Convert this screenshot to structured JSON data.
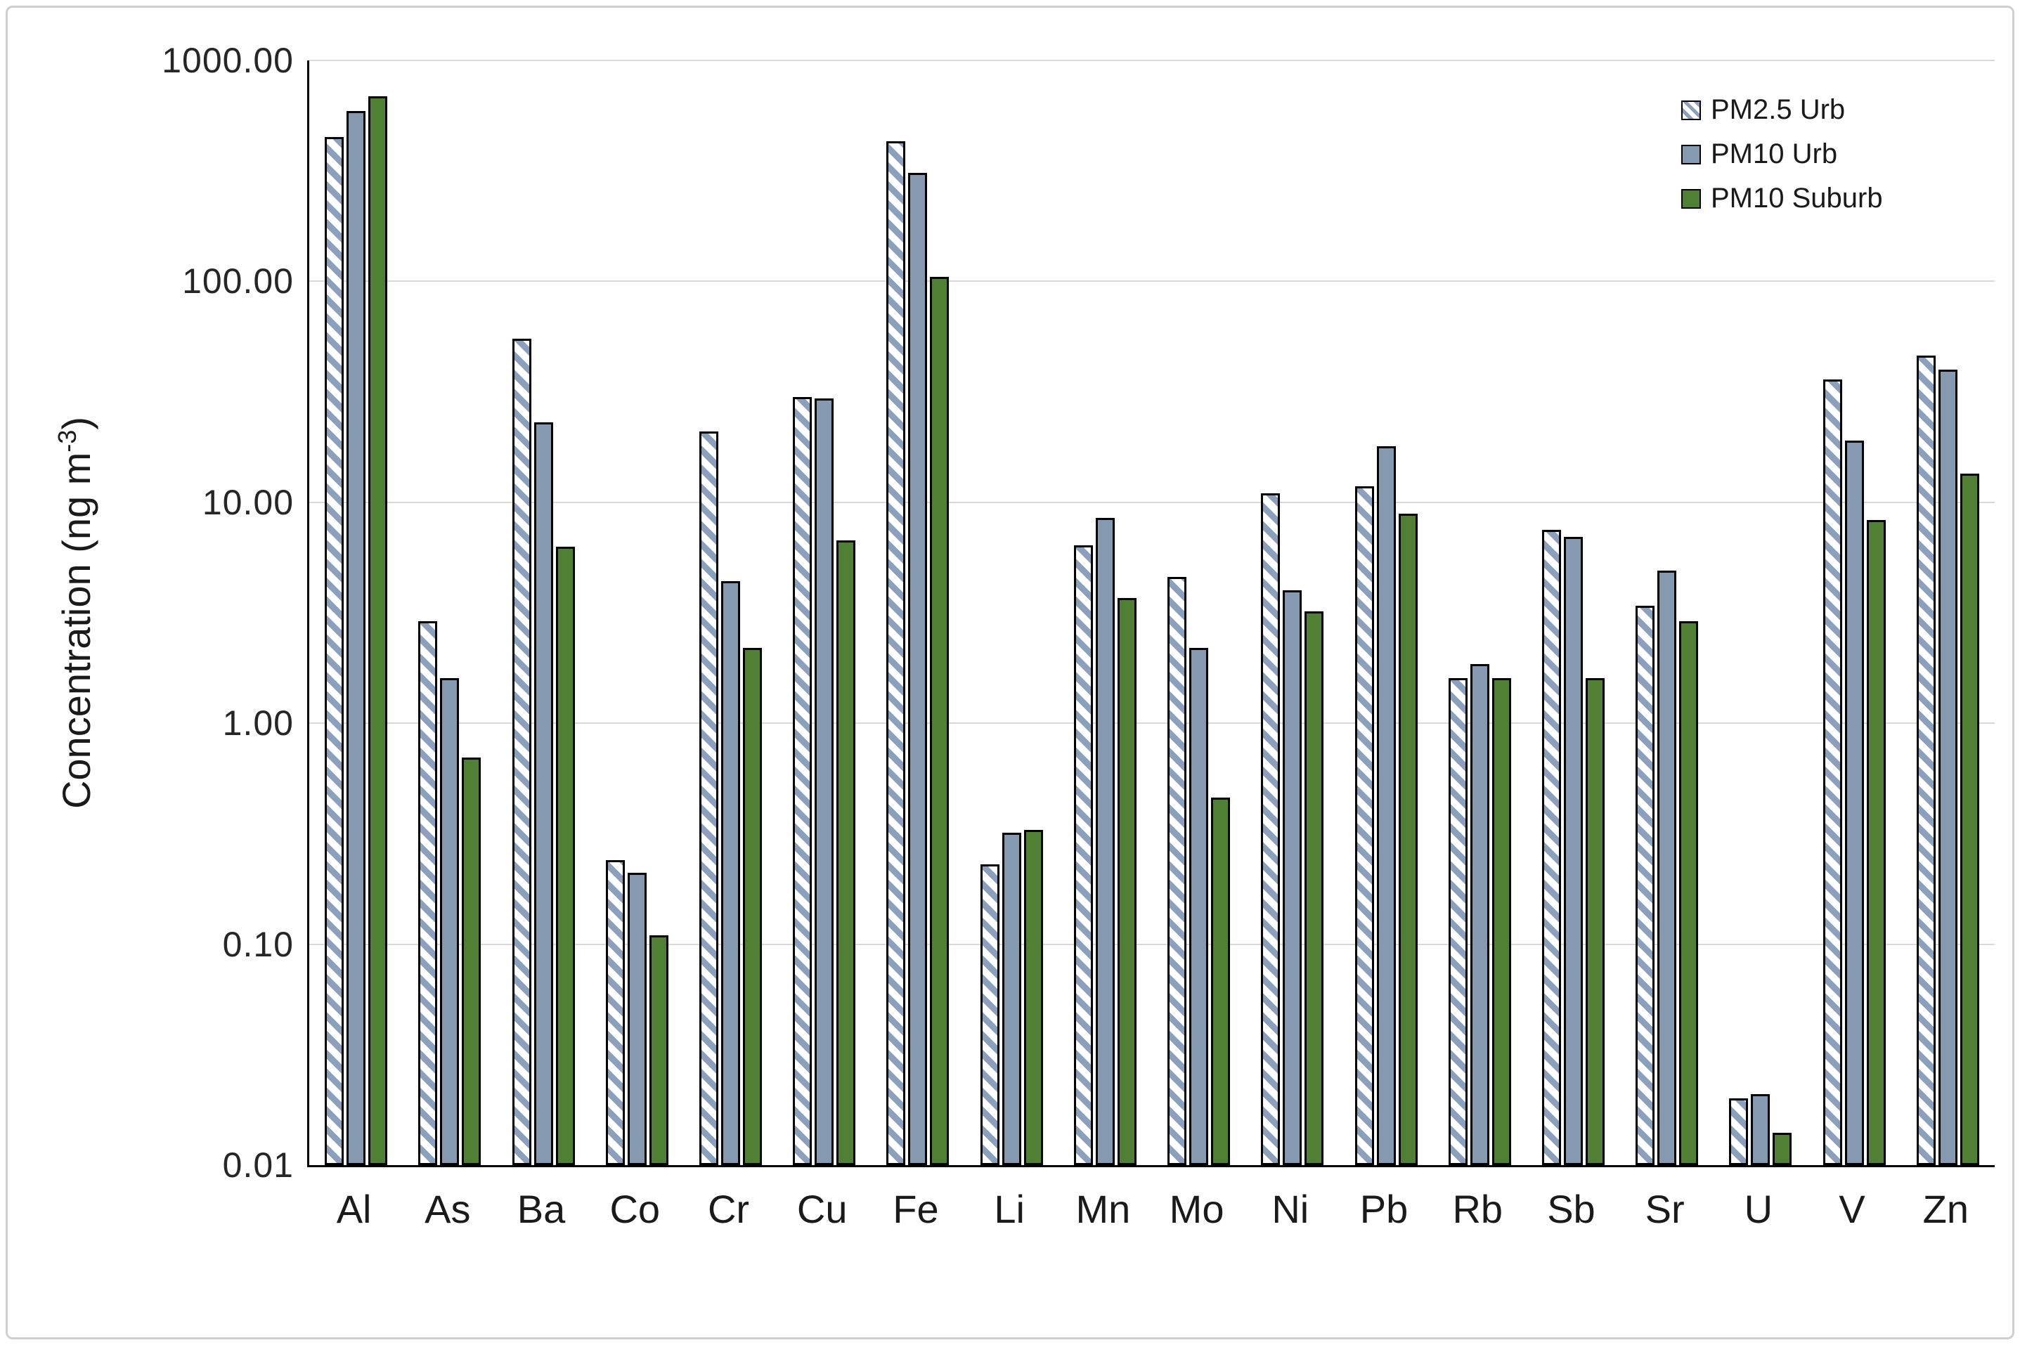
{
  "figure": {
    "background": "#ffffff",
    "border_color": "#cfcfcf",
    "axis_color": "#000000",
    "gridline_color": "#d9d9d9",
    "text_color": "#1a1a1a"
  },
  "chart_data": {
    "type": "bar",
    "y_scale": "log10",
    "ylim": [
      0.01,
      1000
    ],
    "grid": true,
    "legend_position": "top-right",
    "title": "",
    "xlabel": "",
    "ylabel": "Concentration (ng m⁻³)",
    "ylabel_parts": {
      "prefix": "Concentration (ng m",
      "superscript": "-3",
      "suffix": ")"
    },
    "yticks": [
      {
        "label": "1000.00",
        "value": 1000
      },
      {
        "label": "100.00",
        "value": 100
      },
      {
        "label": "10.00",
        "value": 10
      },
      {
        "label": "1.00",
        "value": 1
      },
      {
        "label": "0.10",
        "value": 0.1
      },
      {
        "label": "0.01",
        "value": 0.01
      }
    ],
    "categories": [
      "Al",
      "As",
      "Ba",
      "Co",
      "Cr",
      "Cu",
      "Fe",
      "Li",
      "Mn",
      "Mo",
      "Ni",
      "Pb",
      "Rb",
      "Sb",
      "Sr",
      "U",
      "V",
      "Zn"
    ],
    "series": [
      {
        "name": "PM2.5 Urb",
        "style": "hatched",
        "fill": "#ffffff",
        "hatch_color": "#8ba0bc",
        "values": [
          450,
          2.9,
          55,
          0.24,
          21,
          30,
          430,
          0.23,
          6.4,
          4.6,
          11,
          11.8,
          1.6,
          7.5,
          3.4,
          0.02,
          36,
          46
        ]
      },
      {
        "name": "PM10 Urb",
        "style": "solid",
        "fill": "#8599b1",
        "values": [
          590,
          1.6,
          23,
          0.21,
          4.4,
          29.5,
          310,
          0.32,
          8.5,
          2.2,
          4.0,
          18,
          1.85,
          7.0,
          4.9,
          0.021,
          19,
          40
        ]
      },
      {
        "name": "PM10 Suburb",
        "style": "solid",
        "fill": "#4f8033",
        "values": [
          690,
          0.7,
          6.3,
          0.11,
          2.2,
          6.7,
          105,
          0.33,
          3.7,
          0.46,
          3.2,
          8.9,
          1.6,
          1.6,
          2.9,
          0.014,
          8.3,
          13.5
        ]
      }
    ]
  }
}
